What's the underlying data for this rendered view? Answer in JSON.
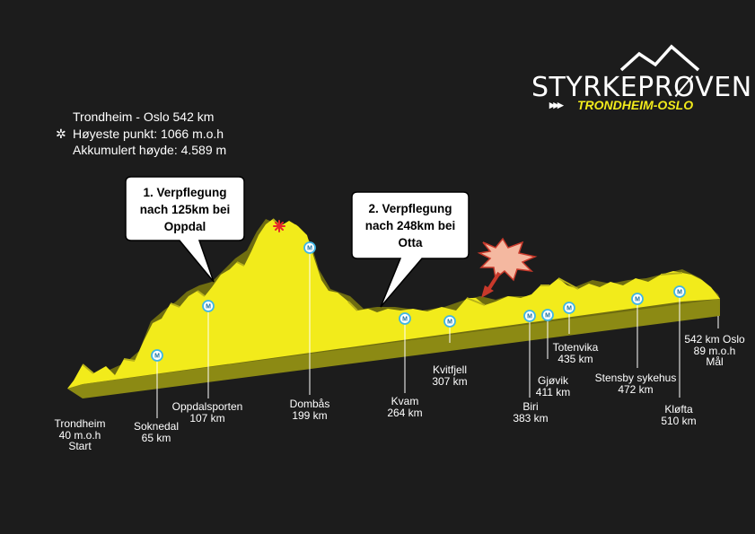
{
  "info": {
    "route": "Trondheim - Oslo 542 km",
    "highest_point": "Høyeste punkt: 1066 m.o.h",
    "accumulated_height": "Akkumulert høyde: 4.589 m",
    "star_glyph": "✲"
  },
  "callouts": [
    {
      "lines": [
        "1. Verpflegung",
        "nach 125km bei",
        "Oppdal"
      ]
    },
    {
      "lines": [
        "2. Verpflegung",
        "nach 248km bei",
        "Otta"
      ]
    }
  ],
  "logo": {
    "title": "STYRKEPRØVEN",
    "arrows": "▸▸▸",
    "subtitle": "TRONDHEIM-OSLO"
  },
  "marker_letter": "M",
  "locations": {
    "trondheim": {
      "lines": [
        "Trondheim",
        "40 m.o.h",
        "Start"
      ]
    },
    "soknedal": {
      "lines": [
        "Soknedal",
        "65 km"
      ]
    },
    "oppdalsporten": {
      "lines": [
        "Oppdalsporten",
        "107 km"
      ]
    },
    "dombas": {
      "lines": [
        "Dombås",
        "199 km"
      ]
    },
    "kvam": {
      "lines": [
        "Kvam",
        "264 km"
      ]
    },
    "kvitfjell": {
      "lines": [
        "Kvitfjell",
        "307 km"
      ]
    },
    "biri": {
      "lines": [
        "Biri",
        "383 km"
      ]
    },
    "gjovik": {
      "lines": [
        "Gjøvik",
        "411 km"
      ]
    },
    "totenvika": {
      "lines": [
        "Totenvika",
        "435 km"
      ]
    },
    "stensby": {
      "lines": [
        "Stensby sykehus",
        "472 km"
      ]
    },
    "klofta": {
      "lines": [
        "Kløfta",
        "510 km"
      ]
    },
    "oslo": {
      "lines": [
        "542 km Oslo",
        "89 m.o.h",
        "Mål"
      ]
    }
  },
  "colors": {
    "background": "#1c1c1c",
    "profile_yellow": "#f2eb1b",
    "profile_shadow": "#8c8a14",
    "marker_ring": "#3fb6e6",
    "burst": "#c8392b",
    "burst_fill": "#f4b8a0",
    "highest_star": "#e8282a"
  },
  "icons": [
    "star-icon",
    "marker-icon",
    "burst-icon",
    "mountain-logo-icon"
  ]
}
